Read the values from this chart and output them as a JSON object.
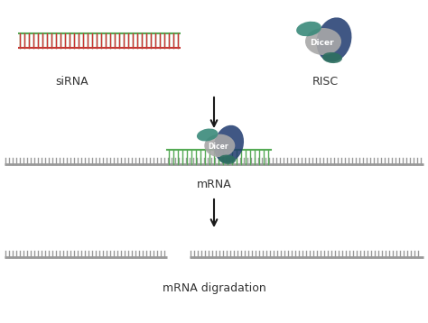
{
  "bg_color": "#ffffff",
  "arrow_color": "#1a1a1a",
  "font_size": 9,
  "dicer_label": "Dicer",
  "dicer_color_gray": "#a8a8a8",
  "dicer_color_teal": "#3a8a7a",
  "dicer_color_navy": "#1e3a6e",
  "dicer_color_teal2": "#2e7060",
  "mrna_color": "#999999",
  "sirna_red": "#cc3333",
  "sirna_green": "#55aa55",
  "teeth_color_gray": "#888888",
  "sirna_label": "siRNA",
  "risc_label": "RISC",
  "mrna_label": "mRNA",
  "deg_label": "mRNA digradation"
}
